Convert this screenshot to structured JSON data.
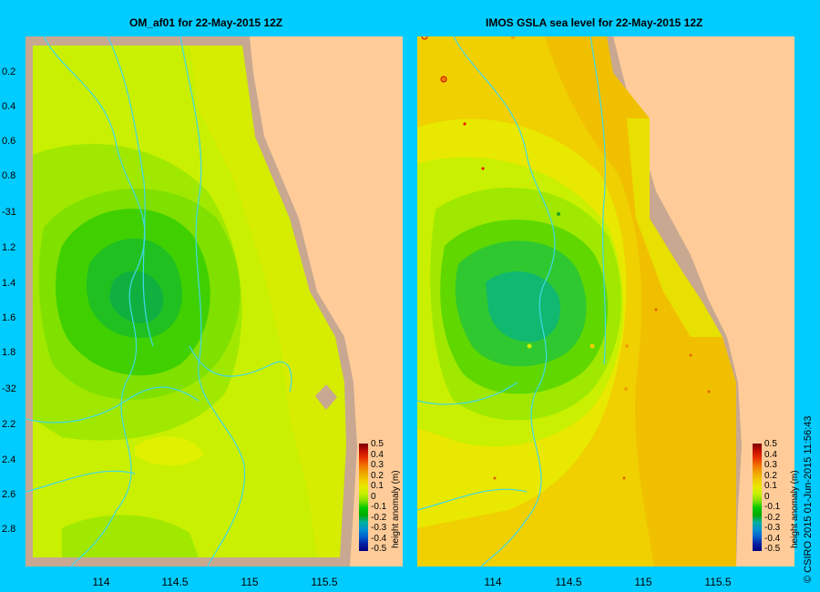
{
  "left_panel": {
    "title": "OM_af01  for 22-May-2015 12Z",
    "y_ticks": [
      "0.2",
      "0.4",
      "0.6",
      "0.8",
      "-31",
      "1.2",
      "1.4",
      "1.6",
      "1.8",
      "-32",
      "2.2",
      "2.4",
      "2.6",
      "2.8"
    ],
    "x_ticks": [
      "114",
      "114.5",
      "115",
      "115.5"
    ]
  },
  "right_panel": {
    "title": "IMOS GSLA sea level  for 22-May-2015 12Z",
    "x_ticks": [
      "114",
      "114.5",
      "115",
      "115.5"
    ]
  },
  "colorbar": {
    "ticks": [
      "0.5",
      "0.4",
      "0.3",
      "0.2",
      "0.1",
      "0",
      "-0.1",
      "-0.2",
      "-0.3",
      "-0.4",
      "-0.5"
    ],
    "label": "height anomaly (m)"
  },
  "credit": "© CSIRO 2015   01-Jun-2015 11:56:43",
  "colors": {
    "background": "#00ccff",
    "land": "#ffcc99",
    "coast_shelf": "#c8a890",
    "river_lines": "#40d8e8"
  }
}
